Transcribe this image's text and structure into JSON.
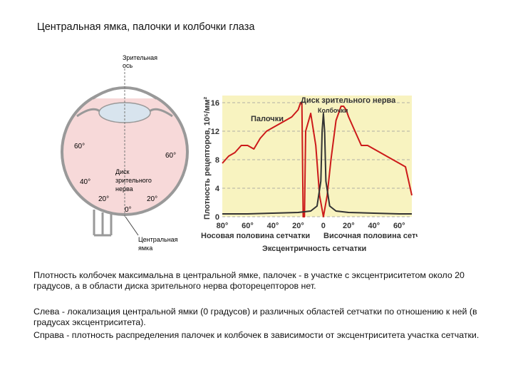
{
  "title": "Центральная ямка, палочки и колбочки глаза",
  "eye": {
    "visual_axis": [
      "Зрительная",
      "ось"
    ],
    "optic_disc": [
      "Диск",
      "зрительного",
      "нерва"
    ],
    "fovea": [
      "Центральная",
      "ямка"
    ],
    "degree_labels": [
      "60°",
      "60°",
      "40°",
      "20°",
      "20°",
      "0°",
      "80°",
      "60°",
      "40°",
      "20°"
    ],
    "colors": {
      "retina": "#f7d9d9",
      "lens": "#d8e4ee",
      "outline": "#999999"
    }
  },
  "chart_data": {
    "type": "line",
    "ylabel": "Плотность рецепторов, 10⁵/мм²",
    "xlabel": "Эксцентричность сетчатки",
    "x_half_labels": [
      "Носовая половина сетчатки",
      "Височная половина сетчатки"
    ],
    "x_tick_labels": [
      "80°",
      "60°",
      "40°",
      "20°",
      "0",
      "20°",
      "40°",
      "60°"
    ],
    "y_tick_labels": [
      "0",
      "4",
      "8",
      "12",
      "16"
    ],
    "ylim": [
      0,
      17
    ],
    "xlim": [
      -80,
      70
    ],
    "annotations": [
      "Диск зрительного нерва",
      "Колбочки",
      "Палочки"
    ],
    "series": [
      {
        "name": "Палочки",
        "color": "#cc1a1a",
        "x": [
          -80,
          -75,
          -70,
          -65,
          -60,
          -55,
          -50,
          -45,
          -40,
          -35,
          -30,
          -25,
          -20,
          -18,
          -17,
          -16,
          -15,
          -14,
          -10,
          -6,
          -3,
          0,
          3,
          6,
          10,
          14,
          16,
          18,
          20,
          25,
          30,
          35,
          40,
          45,
          50,
          55,
          60,
          65,
          70
        ],
        "y": [
          7.5,
          8.5,
          9,
          10,
          10,
          9.5,
          11,
          12,
          12.5,
          13,
          13.5,
          14,
          15,
          16,
          16,
          0,
          0,
          12,
          14.5,
          10,
          3,
          0,
          3,
          8,
          13.5,
          15.5,
          15.5,
          15,
          14,
          12,
          10,
          10,
          9.5,
          9,
          8.5,
          8,
          7.5,
          7,
          3
        ]
      },
      {
        "name": "Колбочки",
        "color": "#333333",
        "x": [
          -80,
          -60,
          -40,
          -20,
          -10,
          -5,
          -2,
          -1,
          0,
          1,
          2,
          5,
          10,
          20,
          40,
          60,
          70
        ],
        "y": [
          0.4,
          0.4,
          0.5,
          0.6,
          0.8,
          1.5,
          5,
          12,
          14.5,
          12,
          5,
          1.5,
          0.8,
          0.6,
          0.5,
          0.4,
          0.4
        ]
      }
    ]
  },
  "captions": {
    "p1": "Плотность колбочек максимальна в центральной ямке, палочек - в участке с эксцентриситетом около 20 градусов, а в области диска зрительного нерва фоторецепторов нет.",
    "p2": "Слева - локализация центральной ямки (0 градусов) и различных областей сетчатки по отношению к ней (в градусах эксцентриситета).",
    "p3": "Справа - плотность распределения палочек и колбочек в зависимости от эксцентриситета участка сетчатки."
  }
}
